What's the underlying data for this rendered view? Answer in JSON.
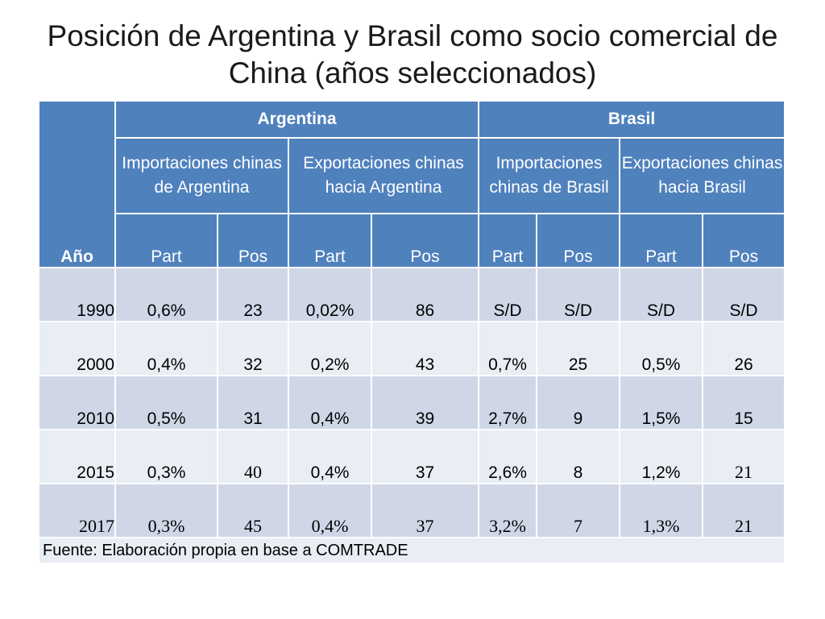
{
  "title": "Posición de Argentina y Brasil como socio comercial de China (años seleccionados)",
  "header": {
    "year": "Año",
    "groups": [
      "Argentina",
      "Brasil"
    ],
    "subgroups": [
      "Importaciones chinas de Argentina",
      "Exportaciones chinas hacia Argentina",
      "Importaciones chinas de Brasil",
      "Exportaciones chinas hacia Brasil"
    ],
    "columns": [
      "Part",
      "Pos",
      "Part",
      "Pos",
      "Part",
      "Pos",
      "Part",
      "Pos"
    ]
  },
  "rows": [
    {
      "year": "1990",
      "cells": [
        "0,6%",
        "23",
        "0,02%",
        "86",
        "S/D",
        "S/D",
        "S/D",
        "S/D"
      ]
    },
    {
      "year": "2000",
      "cells": [
        "0,4%",
        "32",
        "0,2%",
        "43",
        "0,7%",
        "25",
        "0,5%",
        "26"
      ]
    },
    {
      "year": "2010",
      "cells": [
        "0,5%",
        "31",
        "0,4%",
        "39",
        "2,7%",
        "9",
        "1,5%",
        "15"
      ]
    },
    {
      "year": "2015",
      "cells": [
        "0,3%",
        "40",
        "0,4%",
        "37",
        "2,6%",
        "8",
        "1,2%",
        "21"
      ]
    },
    {
      "year": "2017",
      "cells": [
        "0,3%",
        "45",
        "0,4%",
        "37",
        "3,2%",
        "7",
        "1,3%",
        "21"
      ]
    }
  ],
  "footer": "Fuente: Elaboración propia en base a COMTRADE",
  "colors": {
    "header_blue": "#4f81bd",
    "row_dark": "#cfd7e7",
    "row_light": "#e9edf4"
  }
}
